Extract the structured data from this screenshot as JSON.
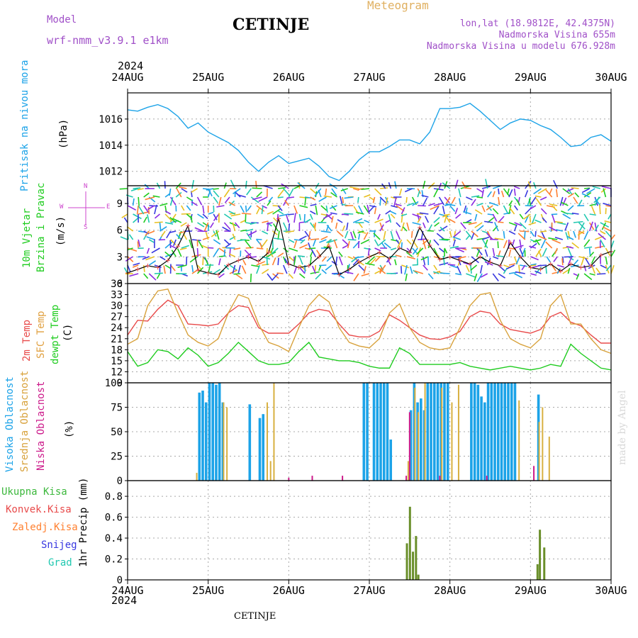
{
  "header": {
    "model_label": "Model",
    "model_name": "wrf-nmm_v3.9.1 e1km",
    "station": "CETINJE",
    "meteogram": "Meteogram",
    "lonlat": "lon,lat (18.9812E, 42.4375N)",
    "altitude": "Nadmorska Visina 655m",
    "model_altitude": "Nadmorska Visina u modelu 676.928m",
    "year_top": "2024",
    "year_bottom": "2024",
    "footer_station": "CETINJE",
    "credit": "made by Angel"
  },
  "colors": {
    "pressure": "#1ca3e8",
    "temp2m": "#e84a4a",
    "sfc": "#d8a23c",
    "dewpt": "#1fcc1f",
    "high_cloud": "#1ca3e8",
    "mid_cloud": "#d8b040",
    "low_cloud": "#cc1a8a",
    "total_precip": "#6a8f2a",
    "conv": "#e84a4a",
    "frozen": "#ff8030",
    "snow": "#3838e0",
    "hail": "#20c8b0",
    "wind_axis": "#cc44cc"
  },
  "axis_labels": {
    "pressure": [
      "Pritisak na nivou mora",
      "(hPa)"
    ],
    "wind": [
      "10m Vjetar",
      "Brzina i Pravac",
      "(m/s)"
    ],
    "wind_compass": [
      "N",
      "S",
      "W",
      "E"
    ],
    "temp": [
      "2m Temp",
      "SFC Temp",
      "dewpt Temp",
      "(C)"
    ],
    "cloud": [
      "Visoka Oblacnost",
      "Srednja Oblacnost",
      "Niska Oblacnost",
      "(%)"
    ],
    "precip": [
      "Ukupna Kisa",
      "Konvek.Kisa",
      "Zaledj.Kisa",
      "Snijeg",
      "Grad",
      "1hr Precip (mm)"
    ]
  },
  "chart_data": [
    {
      "type": "line",
      "title": "",
      "ylabel": "Pritisak na nivou mora (hPa)",
      "x_days": [
        "24AUG",
        "25AUG",
        "26AUG",
        "27AUG",
        "28AUG",
        "29AUG",
        "30AUG"
      ],
      "x_start": "2024-08-24 00:00",
      "yticks": [
        1012,
        1014,
        1016
      ],
      "ylim": [
        1010.9,
        1018.0
      ],
      "series": [
        {
          "name": "pressure",
          "x_hours": [
            0,
            3,
            6,
            9,
            12,
            15,
            18,
            21,
            24,
            27,
            30,
            33,
            36,
            39,
            42,
            45,
            48,
            51,
            54,
            57,
            60,
            63,
            66,
            69,
            72,
            75,
            78,
            81,
            84,
            87,
            90,
            93,
            96,
            99,
            102,
            105,
            108,
            111,
            114,
            117,
            120,
            123,
            126,
            129,
            132,
            135,
            138,
            141,
            144
          ],
          "values": [
            1016.7,
            1016.6,
            1016.9,
            1017.1,
            1016.8,
            1016.2,
            1015.3,
            1015.7,
            1015.0,
            1014.6,
            1014.2,
            1013.6,
            1012.7,
            1012.0,
            1012.7,
            1013.2,
            1012.6,
            1012.8,
            1013.0,
            1012.4,
            1011.6,
            1011.3,
            1012.0,
            1012.9,
            1013.5,
            1013.5,
            1013.9,
            1014.4,
            1014.4,
            1014.1,
            1015.0,
            1016.8,
            1016.8,
            1016.9,
            1017.2,
            1016.6,
            1015.9,
            1015.2,
            1015.7,
            1016.0,
            1015.9,
            1015.5,
            1015.2,
            1014.6,
            1013.9,
            1014.0,
            1014.6,
            1014.8,
            1014.3
          ]
        }
      ]
    },
    {
      "type": "line",
      "title": "",
      "ylabel": "10m Vjetar Brzina i Pravac (m/s)",
      "yticks": [
        0,
        3,
        6,
        9
      ],
      "ylim": [
        0,
        11
      ],
      "series": [
        {
          "name": "wind speed",
          "x_hours": [
            0,
            3,
            6,
            9,
            12,
            15,
            18,
            21,
            24,
            27,
            30,
            33,
            36,
            39,
            42,
            45,
            48,
            51,
            54,
            57,
            60,
            63,
            66,
            69,
            72,
            75,
            78,
            81,
            84,
            87,
            90,
            93,
            96,
            99,
            102,
            105,
            108,
            111,
            114,
            117,
            120,
            123,
            126,
            129,
            132,
            135,
            138,
            141,
            144
          ],
          "values": [
            1.2,
            1.6,
            2.0,
            1.8,
            2.6,
            4.2,
            6.5,
            1.5,
            1.2,
            1.0,
            2.1,
            2.6,
            3.0,
            2.5,
            3.5,
            7.3,
            2.2,
            1.8,
            2.0,
            3.0,
            4.2,
            1.0,
            1.6,
            2.4,
            3.0,
            3.5,
            2.8,
            4.0,
            3.5,
            6.3,
            4.3,
            2.7,
            3.0,
            2.6,
            2.2,
            3.0,
            2.4,
            2.0,
            4.6,
            3.0,
            1.8,
            1.6,
            2.2,
            1.4,
            2.2,
            1.8,
            2.0,
            3.2,
            3.6
          ]
        }
      ]
    },
    {
      "type": "line",
      "title": "",
      "ylabel": "Temp (C)",
      "yticks": [
        9,
        12,
        15,
        18,
        21,
        24,
        27,
        30,
        33,
        36
      ],
      "ylim": [
        9,
        36
      ],
      "series": [
        {
          "name": "2m Temp",
          "x_hours": [
            0,
            3,
            6,
            9,
            12,
            15,
            18,
            21,
            24,
            27,
            30,
            33,
            36,
            39,
            42,
            45,
            48,
            51,
            54,
            57,
            60,
            63,
            66,
            69,
            72,
            75,
            78,
            81,
            84,
            87,
            90,
            93,
            96,
            99,
            102,
            105,
            108,
            111,
            114,
            117,
            120,
            123,
            126,
            129,
            132,
            135,
            138,
            141,
            144
          ],
          "values": [
            22.0,
            26.0,
            25.8,
            29.0,
            31.5,
            30.0,
            25.0,
            24.8,
            24.5,
            25.0,
            28.0,
            30.0,
            29.5,
            24.0,
            22.5,
            22.5,
            22.5,
            25.0,
            28.0,
            29.0,
            28.5,
            25.0,
            22.0,
            21.5,
            21.5,
            23.0,
            27.5,
            26.0,
            24.0,
            22.0,
            21.0,
            20.8,
            21.5,
            23.0,
            27.0,
            28.5,
            28.0,
            25.0,
            23.5,
            23.0,
            22.5,
            23.5,
            27.0,
            28.2,
            25.5,
            24.5,
            22.0,
            19.8,
            19.8
          ]
        },
        {
          "name": "SFC Temp",
          "x_hours": [
            0,
            3,
            6,
            9,
            12,
            15,
            18,
            21,
            24,
            27,
            30,
            33,
            36,
            39,
            42,
            45,
            48,
            51,
            54,
            57,
            60,
            63,
            66,
            69,
            72,
            75,
            78,
            81,
            84,
            87,
            90,
            93,
            96,
            99,
            102,
            105,
            108,
            111,
            114,
            117,
            120,
            123,
            126,
            129,
            132,
            135,
            138,
            141,
            144
          ],
          "values": [
            19.5,
            21.0,
            30.0,
            34.0,
            34.5,
            28.0,
            22.0,
            20.0,
            19.0,
            21.0,
            28.0,
            33.0,
            32.0,
            25.0,
            20.0,
            19.0,
            17.5,
            24.0,
            30.0,
            33.0,
            31.0,
            24.0,
            20.0,
            19.0,
            18.5,
            21.0,
            28.0,
            30.5,
            24.0,
            20.0,
            18.5,
            18.0,
            18.5,
            24.0,
            30.0,
            33.0,
            33.5,
            26.0,
            21.0,
            19.5,
            18.5,
            21.0,
            30.0,
            33.0,
            25.0,
            25.0,
            21.0,
            18.0,
            17.0
          ]
        },
        {
          "name": "dewpt Temp",
          "x_hours": [
            0,
            3,
            6,
            9,
            12,
            15,
            18,
            21,
            24,
            27,
            30,
            33,
            36,
            39,
            42,
            45,
            48,
            51,
            54,
            57,
            60,
            63,
            66,
            69,
            72,
            75,
            78,
            81,
            84,
            87,
            90,
            93,
            96,
            99,
            102,
            105,
            108,
            111,
            114,
            117,
            120,
            123,
            126,
            129,
            132,
            135,
            138,
            141,
            144
          ],
          "values": [
            17.5,
            13.5,
            14.5,
            18.0,
            17.5,
            15.5,
            18.5,
            16.5,
            13.5,
            14.5,
            17.0,
            20.0,
            17.5,
            15.0,
            14.0,
            14.0,
            14.5,
            17.5,
            20.0,
            16.0,
            15.5,
            15.0,
            15.0,
            14.5,
            13.5,
            13.0,
            13.0,
            18.5,
            17.0,
            14.0,
            14.0,
            14.0,
            14.0,
            14.5,
            13.5,
            13.0,
            12.5,
            13.0,
            13.5,
            13.0,
            12.5,
            13.0,
            14.0,
            13.5,
            19.5,
            17.0,
            15.0,
            13.0,
            12.5
          ]
        }
      ]
    },
    {
      "type": "bar",
      "title": "",
      "ylabel": "Oblacnost (%)",
      "yticks": [
        0,
        25,
        50,
        75,
        100
      ],
      "ylim": [
        0,
        100
      ],
      "series": [
        {
          "name": "Visoka Oblacnost",
          "bars": [
            [
              21,
              90
            ],
            [
              22,
              92
            ],
            [
              23,
              80
            ],
            [
              24,
              100
            ],
            [
              25,
              100
            ],
            [
              26,
              98
            ],
            [
              27,
              100
            ],
            [
              28,
              80
            ],
            [
              36,
              78
            ],
            [
              39,
              64
            ],
            [
              40,
              68
            ],
            [
              70,
              100
            ],
            [
              71,
              100
            ],
            [
              73,
              100
            ],
            [
              74,
              100
            ],
            [
              75,
              100
            ],
            [
              76,
              100
            ],
            [
              77,
              100
            ],
            [
              78,
              42
            ],
            [
              84,
              72
            ],
            [
              85,
              100
            ],
            [
              86,
              80
            ],
            [
              87,
              84
            ],
            [
              88,
              72
            ],
            [
              89,
              100
            ],
            [
              90,
              100
            ],
            [
              91,
              100
            ],
            [
              92,
              100
            ],
            [
              93,
              100
            ],
            [
              94,
              100
            ],
            [
              95,
              100
            ],
            [
              102,
              100
            ],
            [
              103,
              100
            ],
            [
              104,
              98
            ],
            [
              105,
              86
            ],
            [
              106,
              80
            ],
            [
              107,
              100
            ],
            [
              108,
              100
            ],
            [
              109,
              100
            ],
            [
              110,
              100
            ],
            [
              111,
              100
            ],
            [
              112,
              100
            ],
            [
              113,
              100
            ],
            [
              114,
              100
            ],
            [
              115,
              100
            ],
            [
              122,
              88
            ]
          ]
        },
        {
          "name": "Srednja Oblacnost",
          "bars": [
            [
              20,
              8
            ],
            [
              28,
              80
            ],
            [
              29,
              75
            ],
            [
              41,
              80
            ],
            [
              42,
              20
            ],
            [
              43,
              100
            ],
            [
              83,
              20
            ],
            [
              85,
              95
            ],
            [
              86,
              70
            ],
            [
              88,
              100
            ],
            [
              93,
              95
            ],
            [
              96,
              80
            ],
            [
              98,
              98
            ],
            [
              116,
              82
            ],
            [
              122,
              60
            ],
            [
              123,
              75
            ],
            [
              125,
              45
            ]
          ]
        },
        {
          "name": "Niska Oblacnost",
          "bars": [
            [
              48,
              3
            ],
            [
              55,
              5
            ],
            [
              64,
              5
            ],
            [
              83,
              5
            ],
            [
              84,
              70
            ],
            [
              93,
              5
            ],
            [
              107,
              5
            ],
            [
              121,
              15
            ]
          ]
        }
      ]
    },
    {
      "type": "bar",
      "title": "",
      "ylabel": "1hr Precip (mm)",
      "yticks": [
        0,
        0.2,
        0.4,
        0.6,
        0.8
      ],
      "ylim": [
        0,
        0.95
      ],
      "series": [
        {
          "name": "Ukupna Kisa",
          "bars": [
            [
              83.2,
              0.35
            ],
            [
              84.1,
              0.7
            ],
            [
              85.0,
              0.27
            ],
            [
              85.9,
              0.42
            ],
            [
              86.6,
              0.05
            ],
            [
              122.1,
              0.15
            ],
            [
              122.8,
              0.48
            ],
            [
              124.1,
              0.31
            ]
          ]
        }
      ]
    }
  ]
}
